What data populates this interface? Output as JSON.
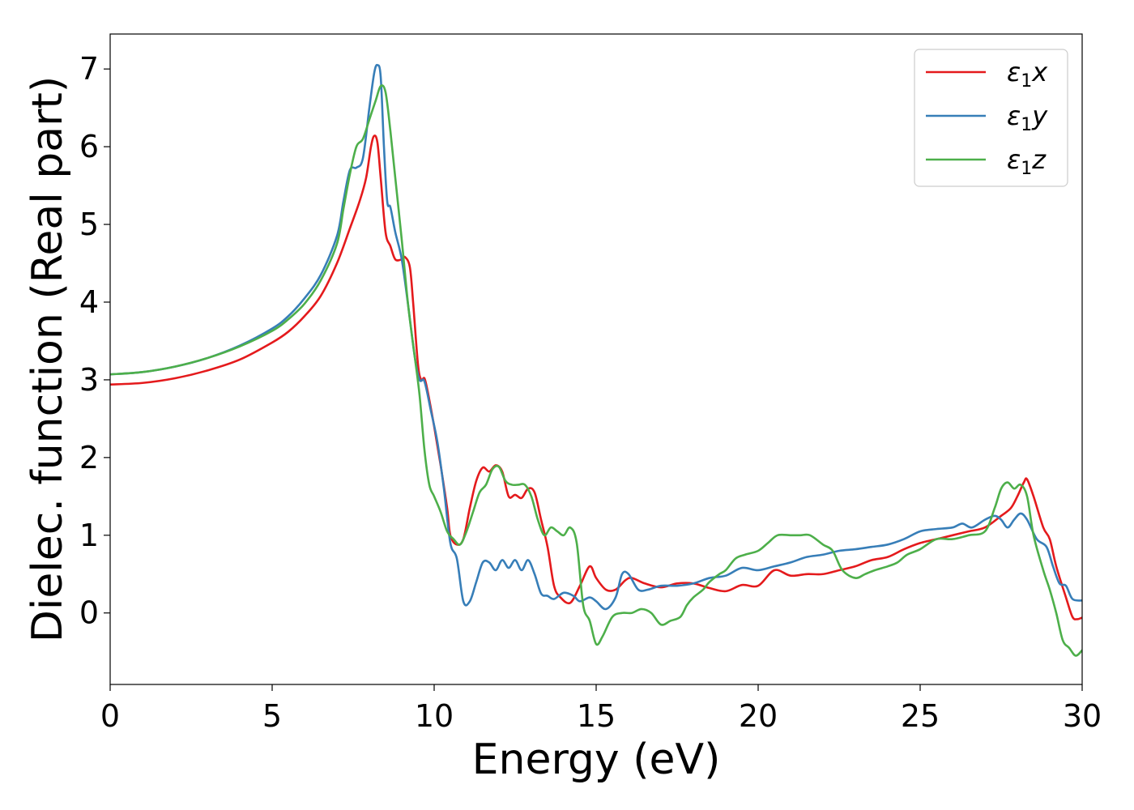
{
  "chart_data": {
    "type": "line",
    "xlabel": "Energy (eV)",
    "ylabel": "Dielec. function (Real part)",
    "xlim": [
      0,
      30
    ],
    "ylim": [
      -0.92,
      7.45
    ],
    "xticks": [
      0,
      5,
      10,
      15,
      20,
      25,
      30
    ],
    "yticks": [
      0,
      1,
      2,
      3,
      4,
      5,
      6,
      7
    ],
    "grid": false,
    "legend_position": "top-right",
    "series": [
      {
        "name": "ε1x",
        "legend": {
          "base": "ε",
          "sub": "1",
          "suffix": "x"
        },
        "color": "#e41a1c",
        "points": [
          [
            0,
            2.94
          ],
          [
            1,
            2.96
          ],
          [
            2,
            3.02
          ],
          [
            3,
            3.12
          ],
          [
            4,
            3.26
          ],
          [
            5,
            3.48
          ],
          [
            5.5,
            3.62
          ],
          [
            6,
            3.82
          ],
          [
            6.5,
            4.08
          ],
          [
            7,
            4.5
          ],
          [
            7.4,
            4.95
          ],
          [
            7.7,
            5.3
          ],
          [
            7.9,
            5.6
          ],
          [
            8.05,
            6.0
          ],
          [
            8.15,
            6.14
          ],
          [
            8.25,
            6.05
          ],
          [
            8.35,
            5.6
          ],
          [
            8.5,
            4.9
          ],
          [
            8.65,
            4.72
          ],
          [
            8.8,
            4.55
          ],
          [
            9.0,
            4.55
          ],
          [
            9.1,
            4.58
          ],
          [
            9.25,
            4.45
          ],
          [
            9.35,
            4.0
          ],
          [
            9.5,
            3.2
          ],
          [
            9.6,
            3.0
          ],
          [
            9.7,
            3.02
          ],
          [
            9.8,
            2.85
          ],
          [
            10.0,
            2.4
          ],
          [
            10.2,
            1.9
          ],
          [
            10.4,
            1.35
          ],
          [
            10.5,
            1.0
          ],
          [
            10.7,
            0.88
          ],
          [
            10.9,
            0.95
          ],
          [
            11.1,
            1.35
          ],
          [
            11.3,
            1.7
          ],
          [
            11.5,
            1.87
          ],
          [
            11.7,
            1.82
          ],
          [
            11.9,
            1.9
          ],
          [
            12.1,
            1.82
          ],
          [
            12.3,
            1.5
          ],
          [
            12.5,
            1.52
          ],
          [
            12.7,
            1.48
          ],
          [
            12.9,
            1.6
          ],
          [
            13.1,
            1.55
          ],
          [
            13.3,
            1.2
          ],
          [
            13.5,
            0.85
          ],
          [
            13.7,
            0.35
          ],
          [
            13.9,
            0.2
          ],
          [
            14.2,
            0.13
          ],
          [
            14.5,
            0.35
          ],
          [
            14.8,
            0.6
          ],
          [
            15.0,
            0.45
          ],
          [
            15.3,
            0.3
          ],
          [
            15.6,
            0.3
          ],
          [
            15.9,
            0.42
          ],
          [
            16.1,
            0.45
          ],
          [
            16.5,
            0.38
          ],
          [
            17.0,
            0.33
          ],
          [
            17.5,
            0.38
          ],
          [
            18.0,
            0.38
          ],
          [
            18.5,
            0.32
          ],
          [
            19.0,
            0.28
          ],
          [
            19.5,
            0.36
          ],
          [
            20.0,
            0.35
          ],
          [
            20.5,
            0.55
          ],
          [
            21.0,
            0.48
          ],
          [
            21.5,
            0.5
          ],
          [
            22.0,
            0.5
          ],
          [
            22.5,
            0.55
          ],
          [
            23.0,
            0.6
          ],
          [
            23.5,
            0.68
          ],
          [
            24.0,
            0.72
          ],
          [
            24.5,
            0.82
          ],
          [
            25.0,
            0.9
          ],
          [
            25.5,
            0.95
          ],
          [
            26.0,
            1.0
          ],
          [
            26.5,
            1.05
          ],
          [
            27.0,
            1.1
          ],
          [
            27.5,
            1.25
          ],
          [
            27.8,
            1.35
          ],
          [
            28.0,
            1.5
          ],
          [
            28.2,
            1.68
          ],
          [
            28.3,
            1.72
          ],
          [
            28.5,
            1.5
          ],
          [
            28.8,
            1.1
          ],
          [
            29.0,
            0.95
          ],
          [
            29.2,
            0.6
          ],
          [
            29.5,
            0.2
          ],
          [
            29.7,
            -0.05
          ],
          [
            29.85,
            -0.08
          ],
          [
            30,
            -0.06
          ]
        ]
      },
      {
        "name": "ε1y",
        "legend": {
          "base": "ε",
          "sub": "1",
          "suffix": "y"
        },
        "color": "#377eb8",
        "points": [
          [
            0,
            3.07
          ],
          [
            1,
            3.1
          ],
          [
            2,
            3.17
          ],
          [
            3,
            3.28
          ],
          [
            4,
            3.44
          ],
          [
            5,
            3.66
          ],
          [
            5.5,
            3.82
          ],
          [
            6,
            4.05
          ],
          [
            6.5,
            4.35
          ],
          [
            7,
            4.85
          ],
          [
            7.2,
            5.3
          ],
          [
            7.4,
            5.7
          ],
          [
            7.6,
            5.73
          ],
          [
            7.8,
            5.85
          ],
          [
            8.0,
            6.5
          ],
          [
            8.15,
            6.95
          ],
          [
            8.25,
            7.05
          ],
          [
            8.35,
            6.9
          ],
          [
            8.45,
            6.0
          ],
          [
            8.55,
            5.3
          ],
          [
            8.65,
            5.22
          ],
          [
            8.8,
            4.9
          ],
          [
            9.0,
            4.55
          ],
          [
            9.2,
            3.95
          ],
          [
            9.4,
            3.3
          ],
          [
            9.55,
            3.0
          ],
          [
            9.7,
            2.98
          ],
          [
            9.9,
            2.6
          ],
          [
            10.1,
            2.2
          ],
          [
            10.3,
            1.6
          ],
          [
            10.5,
            0.9
          ],
          [
            10.7,
            0.7
          ],
          [
            10.9,
            0.15
          ],
          [
            11.1,
            0.15
          ],
          [
            11.3,
            0.4
          ],
          [
            11.5,
            0.65
          ],
          [
            11.7,
            0.65
          ],
          [
            11.9,
            0.55
          ],
          [
            12.1,
            0.68
          ],
          [
            12.3,
            0.58
          ],
          [
            12.5,
            0.68
          ],
          [
            12.7,
            0.55
          ],
          [
            12.9,
            0.68
          ],
          [
            13.1,
            0.5
          ],
          [
            13.3,
            0.25
          ],
          [
            13.5,
            0.22
          ],
          [
            13.7,
            0.18
          ],
          [
            14.0,
            0.26
          ],
          [
            14.3,
            0.22
          ],
          [
            14.5,
            0.15
          ],
          [
            14.8,
            0.2
          ],
          [
            15.0,
            0.15
          ],
          [
            15.3,
            0.05
          ],
          [
            15.6,
            0.2
          ],
          [
            15.8,
            0.5
          ],
          [
            16.0,
            0.5
          ],
          [
            16.3,
            0.3
          ],
          [
            16.6,
            0.3
          ],
          [
            17.0,
            0.35
          ],
          [
            17.5,
            0.35
          ],
          [
            18.0,
            0.38
          ],
          [
            18.5,
            0.45
          ],
          [
            19.0,
            0.48
          ],
          [
            19.5,
            0.58
          ],
          [
            20.0,
            0.55
          ],
          [
            20.5,
            0.6
          ],
          [
            21.0,
            0.65
          ],
          [
            21.5,
            0.72
          ],
          [
            22.0,
            0.75
          ],
          [
            22.5,
            0.8
          ],
          [
            23.0,
            0.82
          ],
          [
            23.5,
            0.85
          ],
          [
            24.0,
            0.88
          ],
          [
            24.5,
            0.95
          ],
          [
            25.0,
            1.05
          ],
          [
            25.5,
            1.08
          ],
          [
            26.0,
            1.1
          ],
          [
            26.3,
            1.15
          ],
          [
            26.6,
            1.1
          ],
          [
            27.0,
            1.2
          ],
          [
            27.3,
            1.25
          ],
          [
            27.5,
            1.2
          ],
          [
            27.7,
            1.1
          ],
          [
            27.9,
            1.2
          ],
          [
            28.1,
            1.28
          ],
          [
            28.3,
            1.2
          ],
          [
            28.6,
            0.95
          ],
          [
            28.9,
            0.85
          ],
          [
            29.1,
            0.6
          ],
          [
            29.3,
            0.38
          ],
          [
            29.5,
            0.35
          ],
          [
            29.7,
            0.18
          ],
          [
            30,
            0.16
          ]
        ]
      },
      {
        "name": "ε1z",
        "legend": {
          "base": "ε",
          "sub": "1",
          "suffix": "z"
        },
        "color": "#4daf4a",
        "points": [
          [
            0,
            3.07
          ],
          [
            1,
            3.1
          ],
          [
            2,
            3.17
          ],
          [
            3,
            3.28
          ],
          [
            4,
            3.43
          ],
          [
            5,
            3.63
          ],
          [
            5.5,
            3.78
          ],
          [
            6,
            3.98
          ],
          [
            6.5,
            4.28
          ],
          [
            7,
            4.75
          ],
          [
            7.2,
            5.2
          ],
          [
            7.4,
            5.65
          ],
          [
            7.6,
            6.0
          ],
          [
            7.8,
            6.1
          ],
          [
            8.0,
            6.35
          ],
          [
            8.2,
            6.6
          ],
          [
            8.35,
            6.78
          ],
          [
            8.5,
            6.7
          ],
          [
            8.65,
            6.2
          ],
          [
            8.8,
            5.6
          ],
          [
            9.0,
            4.8
          ],
          [
            9.2,
            3.95
          ],
          [
            9.4,
            3.3
          ],
          [
            9.55,
            2.8
          ],
          [
            9.7,
            2.1
          ],
          [
            9.85,
            1.65
          ],
          [
            10.0,
            1.5
          ],
          [
            10.2,
            1.3
          ],
          [
            10.4,
            1.05
          ],
          [
            10.6,
            0.95
          ],
          [
            10.8,
            0.88
          ],
          [
            11.0,
            1.05
          ],
          [
            11.2,
            1.3
          ],
          [
            11.4,
            1.55
          ],
          [
            11.6,
            1.65
          ],
          [
            11.8,
            1.85
          ],
          [
            12.0,
            1.88
          ],
          [
            12.2,
            1.7
          ],
          [
            12.4,
            1.65
          ],
          [
            12.6,
            1.65
          ],
          [
            12.8,
            1.65
          ],
          [
            13.0,
            1.5
          ],
          [
            13.2,
            1.2
          ],
          [
            13.4,
            1.0
          ],
          [
            13.6,
            1.1
          ],
          [
            13.8,
            1.05
          ],
          [
            14.0,
            1.0
          ],
          [
            14.2,
            1.1
          ],
          [
            14.4,
            0.9
          ],
          [
            14.6,
            0.1
          ],
          [
            14.8,
            -0.1
          ],
          [
            15.0,
            -0.4
          ],
          [
            15.2,
            -0.3
          ],
          [
            15.5,
            -0.05
          ],
          [
            15.8,
            0.0
          ],
          [
            16.1,
            0.0
          ],
          [
            16.4,
            0.05
          ],
          [
            16.7,
            0.0
          ],
          [
            17.0,
            -0.15
          ],
          [
            17.3,
            -0.1
          ],
          [
            17.6,
            -0.05
          ],
          [
            17.8,
            0.1
          ],
          [
            18.0,
            0.2
          ],
          [
            18.3,
            0.3
          ],
          [
            18.5,
            0.4
          ],
          [
            18.8,
            0.5
          ],
          [
            19.0,
            0.55
          ],
          [
            19.3,
            0.7
          ],
          [
            19.6,
            0.75
          ],
          [
            20.0,
            0.8
          ],
          [
            20.3,
            0.9
          ],
          [
            20.6,
            1.0
          ],
          [
            21.0,
            1.0
          ],
          [
            21.3,
            1.0
          ],
          [
            21.6,
            1.0
          ],
          [
            22.0,
            0.88
          ],
          [
            22.3,
            0.8
          ],
          [
            22.6,
            0.55
          ],
          [
            23.0,
            0.45
          ],
          [
            23.3,
            0.5
          ],
          [
            23.6,
            0.55
          ],
          [
            24.0,
            0.6
          ],
          [
            24.3,
            0.65
          ],
          [
            24.6,
            0.75
          ],
          [
            25.0,
            0.82
          ],
          [
            25.5,
            0.95
          ],
          [
            26.0,
            0.95
          ],
          [
            26.5,
            1.0
          ],
          [
            27.0,
            1.05
          ],
          [
            27.3,
            1.35
          ],
          [
            27.5,
            1.6
          ],
          [
            27.7,
            1.68
          ],
          [
            27.9,
            1.6
          ],
          [
            28.1,
            1.65
          ],
          [
            28.3,
            1.5
          ],
          [
            28.5,
            1.0
          ],
          [
            28.8,
            0.55
          ],
          [
            29.0,
            0.3
          ],
          [
            29.2,
            0.0
          ],
          [
            29.4,
            -0.35
          ],
          [
            29.6,
            -0.45
          ],
          [
            29.8,
            -0.55
          ],
          [
            30,
            -0.48
          ]
        ]
      }
    ]
  }
}
